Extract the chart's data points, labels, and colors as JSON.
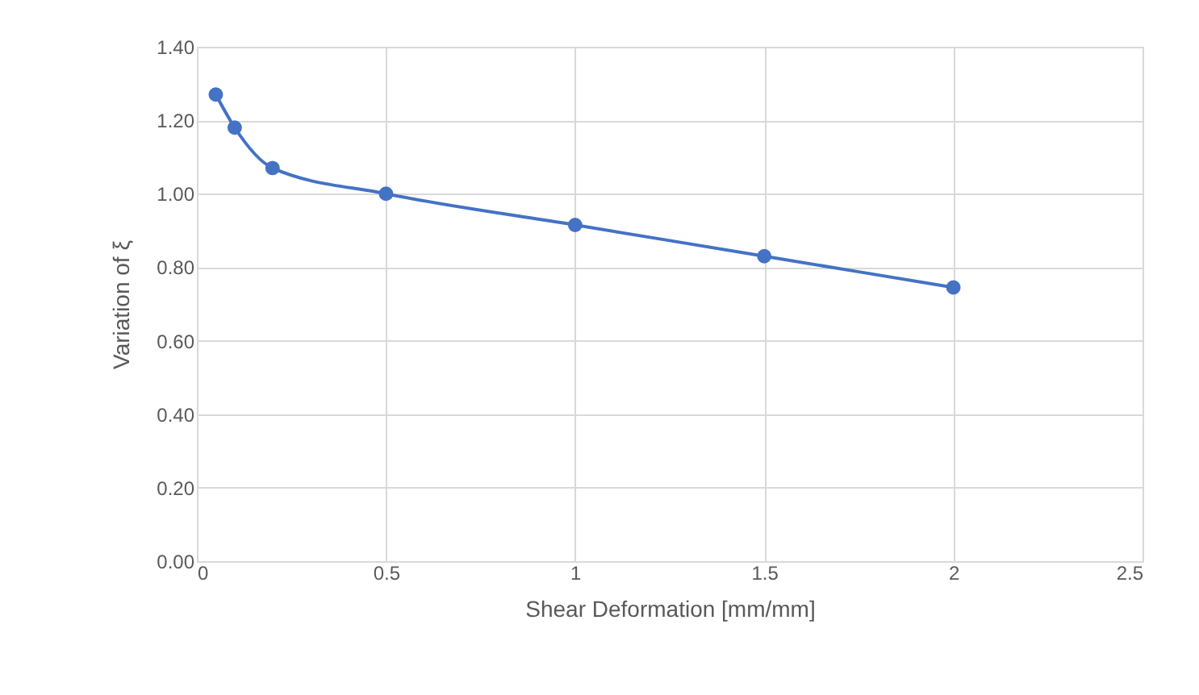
{
  "chart_data": {
    "type": "line",
    "xlabel": "Shear Deformation [mm/mm]",
    "ylabel": "Variation of ξ",
    "x": [
      0.05,
      0.1,
      0.2,
      0.5,
      1,
      1.5,
      2
    ],
    "series": [
      {
        "color": "#4472c4",
        "values": [
          1.27,
          1.18,
          1.07,
          1.0,
          0.915,
          0.83,
          0.745
        ]
      }
    ],
    "xlim": [
      0,
      2.5
    ],
    "xticks": [
      0,
      0.5,
      1,
      1.5,
      2,
      2.5
    ],
    "ylim": [
      0,
      1.4
    ],
    "yticks": [
      {
        "value": 0,
        "label": "0.00"
      },
      {
        "value": 0.2,
        "label": "0.20"
      },
      {
        "value": 0.4,
        "label": "0.40"
      },
      {
        "value": 0.6,
        "label": "0.60"
      },
      {
        "value": 0.8,
        "label": "0.80"
      },
      {
        "value": 1.0,
        "label": "1.00"
      },
      {
        "value": 1.2,
        "label": "1.20"
      },
      {
        "value": 1.4,
        "label": "1.40"
      }
    ],
    "grid": true,
    "marker": "circle",
    "line_style": "solid"
  }
}
